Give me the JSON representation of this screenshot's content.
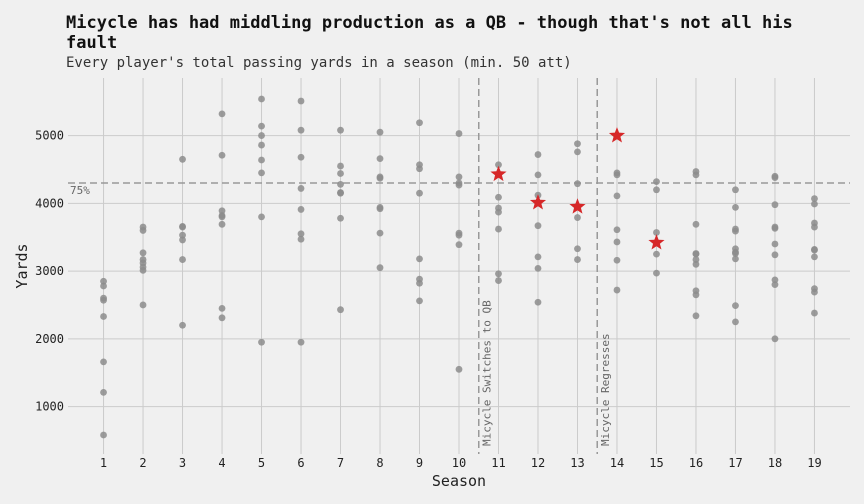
{
  "chart_data": {
    "type": "scatter",
    "title": "Micycle has had middling production as a QB - though that's not all his fault",
    "subtitle": "Every player's total passing yards in a season (min. 50 att)",
    "xlabel": "Season",
    "ylabel": "Yards",
    "xlim": [
      0.1,
      19.9
    ],
    "ylim": [
      300,
      5850
    ],
    "x_ticks": [
      1,
      2,
      3,
      4,
      5,
      6,
      7,
      8,
      9,
      10,
      11,
      12,
      13,
      14,
      15,
      16,
      17,
      18,
      19
    ],
    "y_ticks": [
      1000,
      2000,
      3000,
      4000,
      5000
    ],
    "grid": true,
    "reference_line": {
      "y": 4300,
      "label": "75%"
    },
    "events": [
      {
        "x": 10.5,
        "label": "Micycle Switches to QB"
      },
      {
        "x": 13.5,
        "label": "Micycle Regresses"
      }
    ],
    "colors": {
      "players": "#8c8c8c",
      "micycle": "#d62728",
      "background": "#f0f0f0",
      "grid": "#cbcbcb",
      "reference": "#999999"
    },
    "series": [
      {
        "marker": "circle",
        "points": [
          [
            1,
            2850
          ],
          [
            1,
            2780
          ],
          [
            1,
            2600
          ],
          [
            1,
            2570
          ],
          [
            1,
            2330
          ],
          [
            1,
            1660
          ],
          [
            1,
            1210
          ],
          [
            1,
            580
          ],
          [
            2,
            3650
          ],
          [
            2,
            3600
          ],
          [
            2,
            3270
          ],
          [
            2,
            3170
          ],
          [
            2,
            3120
          ],
          [
            2,
            3060
          ],
          [
            2,
            3010
          ],
          [
            2,
            2500
          ],
          [
            3,
            4650
          ],
          [
            3,
            3660
          ],
          [
            3,
            3650
          ],
          [
            3,
            3530
          ],
          [
            3,
            3460
          ],
          [
            3,
            3170
          ],
          [
            3,
            2200
          ],
          [
            4,
            5320
          ],
          [
            4,
            4710
          ],
          [
            4,
            3890
          ],
          [
            4,
            3820
          ],
          [
            4,
            3800
          ],
          [
            4,
            3690
          ],
          [
            4,
            2450
          ],
          [
            4,
            2310
          ],
          [
            5,
            5540
          ],
          [
            5,
            5140
          ],
          [
            5,
            5000
          ],
          [
            5,
            4860
          ],
          [
            5,
            4640
          ],
          [
            5,
            4450
          ],
          [
            5,
            3800
          ],
          [
            5,
            1950
          ],
          [
            6,
            5510
          ],
          [
            6,
            5080
          ],
          [
            6,
            4680
          ],
          [
            6,
            4220
          ],
          [
            6,
            3910
          ],
          [
            6,
            3550
          ],
          [
            6,
            3470
          ],
          [
            6,
            1950
          ],
          [
            7,
            5080
          ],
          [
            7,
            4550
          ],
          [
            7,
            4440
          ],
          [
            7,
            4280
          ],
          [
            7,
            4160
          ],
          [
            7,
            4150
          ],
          [
            7,
            3780
          ],
          [
            7,
            2430
          ],
          [
            8,
            5050
          ],
          [
            8,
            4660
          ],
          [
            8,
            4390
          ],
          [
            8,
            4370
          ],
          [
            8,
            3940
          ],
          [
            8,
            3920
          ],
          [
            8,
            3560
          ],
          [
            8,
            3050
          ],
          [
            9,
            5190
          ],
          [
            9,
            4570
          ],
          [
            9,
            4510
          ],
          [
            9,
            4150
          ],
          [
            9,
            3180
          ],
          [
            9,
            2880
          ],
          [
            9,
            2820
          ],
          [
            9,
            2560
          ],
          [
            10,
            5030
          ],
          [
            10,
            4390
          ],
          [
            10,
            4300
          ],
          [
            10,
            4270
          ],
          [
            10,
            3560
          ],
          [
            10,
            3530
          ],
          [
            10,
            3390
          ],
          [
            10,
            1550
          ],
          [
            11,
            4570
          ],
          [
            11,
            4090
          ],
          [
            11,
            3930
          ],
          [
            11,
            3870
          ],
          [
            11,
            3620
          ],
          [
            11,
            2960
          ],
          [
            11,
            2860
          ],
          [
            12,
            4720
          ],
          [
            12,
            4420
          ],
          [
            12,
            4120
          ],
          [
            12,
            3670
          ],
          [
            12,
            3210
          ],
          [
            12,
            3040
          ],
          [
            12,
            2540
          ],
          [
            13,
            4880
          ],
          [
            13,
            4760
          ],
          [
            13,
            4290
          ],
          [
            13,
            3790
          ],
          [
            13,
            3330
          ],
          [
            13,
            3170
          ],
          [
            14,
            4450
          ],
          [
            14,
            4420
          ],
          [
            14,
            4110
          ],
          [
            14,
            3610
          ],
          [
            14,
            3430
          ],
          [
            14,
            3160
          ],
          [
            14,
            2720
          ],
          [
            15,
            4320
          ],
          [
            15,
            4200
          ],
          [
            15,
            3570
          ],
          [
            15,
            3250
          ],
          [
            15,
            2970
          ],
          [
            16,
            4470
          ],
          [
            16,
            4420
          ],
          [
            16,
            3690
          ],
          [
            16,
            3260
          ],
          [
            16,
            3250
          ],
          [
            16,
            3170
          ],
          [
            16,
            3100
          ],
          [
            16,
            2710
          ],
          [
            16,
            2650
          ],
          [
            16,
            2340
          ],
          [
            17,
            4200
          ],
          [
            17,
            3940
          ],
          [
            17,
            3620
          ],
          [
            17,
            3590
          ],
          [
            17,
            3330
          ],
          [
            17,
            3280
          ],
          [
            17,
            3260
          ],
          [
            17,
            3180
          ],
          [
            17,
            2490
          ],
          [
            17,
            2250
          ],
          [
            18,
            4400
          ],
          [
            18,
            4380
          ],
          [
            18,
            3980
          ],
          [
            18,
            3650
          ],
          [
            18,
            3630
          ],
          [
            18,
            3400
          ],
          [
            18,
            3240
          ],
          [
            18,
            2870
          ],
          [
            18,
            2800
          ],
          [
            18,
            2000
          ],
          [
            19,
            4070
          ],
          [
            19,
            3990
          ],
          [
            19,
            3710
          ],
          [
            19,
            3650
          ],
          [
            19,
            3320
          ],
          [
            19,
            3310
          ],
          [
            19,
            3210
          ],
          [
            19,
            2740
          ],
          [
            19,
            2690
          ],
          [
            19,
            2380
          ]
        ]
      },
      {
        "marker": "star",
        "points": [
          [
            11,
            4430
          ],
          [
            12,
            4010
          ],
          [
            13,
            3950
          ],
          [
            14,
            5000
          ],
          [
            15,
            3420
          ]
        ]
      }
    ]
  }
}
